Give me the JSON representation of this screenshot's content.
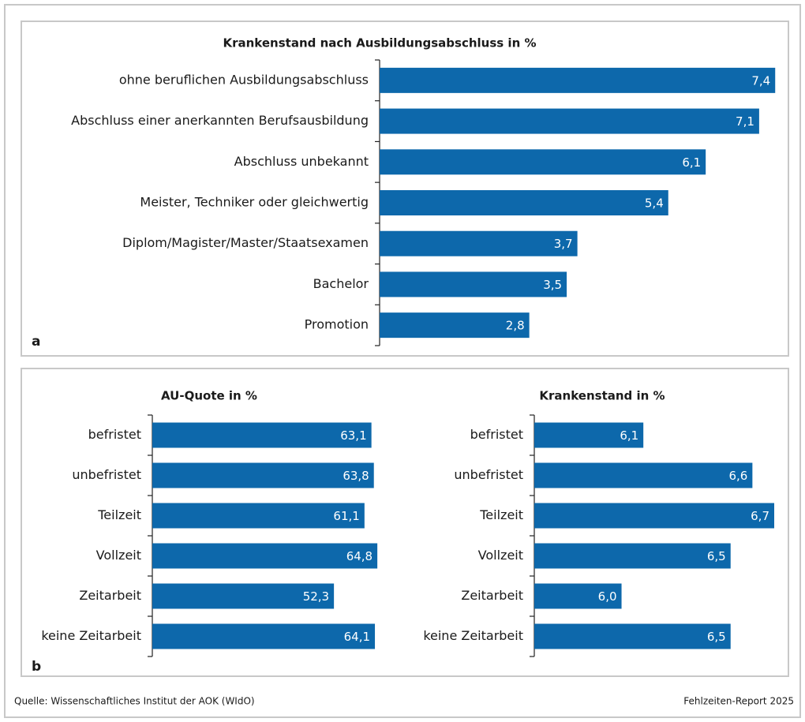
{
  "chart_data": [
    {
      "type": "barh",
      "title": "Krankenstand nach Ausbildungsabschluss in %",
      "categories": [
        "ohne beruflichen Ausbildungsabschluss",
        "Abschluss einer anerkannten Berufsausbildung",
        "Abschluss unbekannt",
        "Meister, Techniker oder gleichwertig",
        "Diplom/Magister/Master/Staatsexamen",
        "Bachelor",
        "Promotion"
      ],
      "values": [
        7.4,
        7.1,
        6.1,
        5.4,
        3.7,
        3.5,
        2.8
      ],
      "value_labels": [
        "7,4",
        "7,1",
        "6,1",
        "5,4",
        "3,7",
        "3,5",
        "2,8"
      ],
      "color": "#0d68ab",
      "xlim": [
        0,
        7.5
      ]
    },
    {
      "type": "barh",
      "title": "AU-Quote in %",
      "categories": [
        "befristet",
        "unbefristet",
        "Teilzeit",
        "Vollzeit",
        "Zeitarbeit",
        "keine Zeitarbeit"
      ],
      "values": [
        63.1,
        63.8,
        61.1,
        64.8,
        52.3,
        64.1
      ],
      "value_labels": [
        "63,1",
        "63,8",
        "61,1",
        "64,8",
        "52,3",
        "64,1"
      ],
      "color": "#0d68ab",
      "xlim": [
        0,
        65
      ]
    },
    {
      "type": "barh",
      "title": "Krankenstand  in %",
      "categories": [
        "befristet",
        "unbefristet",
        "Teilzeit",
        "Vollzeit",
        "Zeitarbeit",
        "keine Zeitarbeit"
      ],
      "values": [
        6.1,
        6.6,
        6.7,
        6.5,
        6.0,
        6.5
      ],
      "value_labels": [
        "6,1",
        "6,6",
        "6,7",
        "6,5",
        "6,0",
        "6,5"
      ],
      "color": "#0d68ab",
      "xlim": [
        5.6,
        6.7
      ]
    }
  ],
  "panels": [
    "a",
    "b"
  ],
  "footer": {
    "source": "Quelle: Wissenschaftliches Institut der AOK (WIdO)",
    "report": "Fehlzeiten-Report 2025"
  }
}
